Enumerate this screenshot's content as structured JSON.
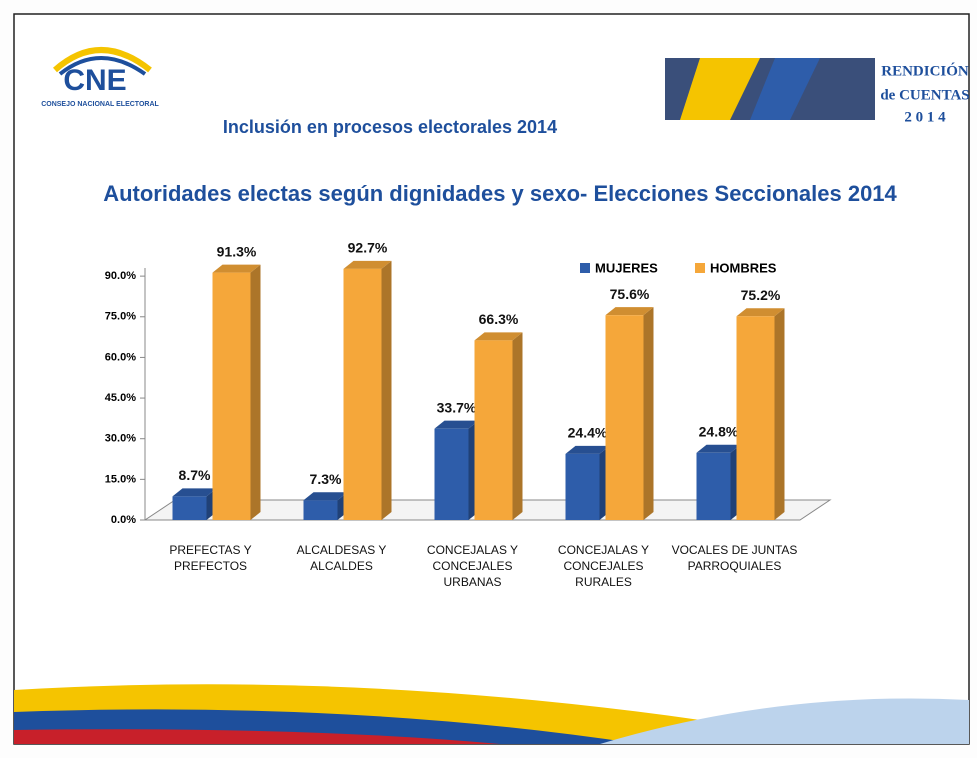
{
  "header": {
    "logo": "CNE",
    "logo_subtitle": "CONSEJO NACIONAL ELECTORAL",
    "badge_line1": "RENDICIÓN",
    "badge_line2": "de CUENTAS",
    "badge_line3": "2 0 1 4",
    "subtitle": "Inclusión en procesos electorales 2014"
  },
  "chart_data": {
    "type": "bar3d",
    "title": "Autoridades electas según dignidades y sexo-  Elecciones Seccionales 2014",
    "categories": [
      "PREFECTAS Y PREFECTOS",
      "ALCALDESAS Y ALCALDES",
      "CONCEJALAS Y CONCEJALES URBANAS",
      "CONCEJALAS Y CONCEJALES RURALES",
      "VOCALES DE JUNTAS PARROQUIALES"
    ],
    "series": [
      {
        "name": "MUJERES",
        "color": "#2e5daa",
        "values": [
          8.7,
          7.3,
          33.7,
          24.4,
          24.8
        ],
        "value_labels": [
          "8.7%",
          "7.3%",
          "33.7%",
          "24.4%",
          "24.8%"
        ]
      },
      {
        "name": "HOMBRES",
        "color": "#f5a73a",
        "values": [
          91.3,
          92.7,
          66.3,
          75.6,
          75.2
        ],
        "value_labels": [
          "91.3%",
          "92.7%",
          "66.3%",
          "75.6%",
          "75.2%"
        ]
      }
    ],
    "ylim": [
      0,
      93
    ],
    "yticks": [
      {
        "value": 0,
        "label": "0.0%"
      },
      {
        "value": 15,
        "label": "15.0%"
      },
      {
        "value": 30,
        "label": "30.0%"
      },
      {
        "value": 45,
        "label": "45.0%"
      },
      {
        "value": 60,
        "label": "60.0%"
      },
      {
        "value": 75,
        "label": "75.0%"
      },
      {
        "value": 90,
        "label": "90.0%"
      }
    ],
    "legend": "top-right"
  }
}
